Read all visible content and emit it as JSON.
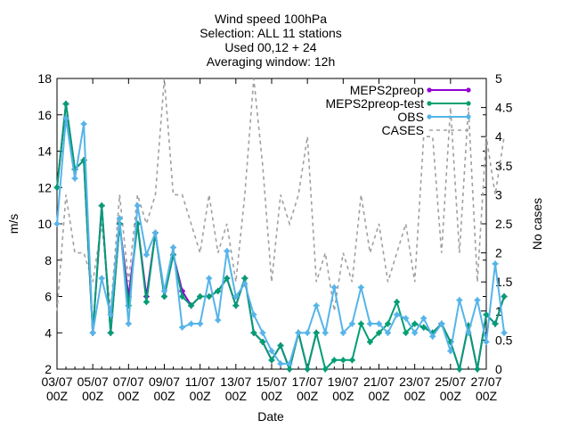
{
  "chart_data": {
    "type": "line",
    "title_lines": [
      "Wind speed 100hPa",
      "Selection: ALL      11 stations",
      "Used 00,12 + 24",
      "Averaging window: 12h"
    ],
    "xlabel": "Date",
    "ylabel": "m/s",
    "y2label": "No cases",
    "ylim": [
      2,
      18
    ],
    "y2lim": [
      0,
      5
    ],
    "yticks": [
      2,
      4,
      6,
      8,
      10,
      12,
      14,
      16,
      18
    ],
    "y2ticks": [
      "0",
      "0.5",
      "1",
      "1.5",
      "2",
      "2.5",
      "3",
      "3.5",
      "4",
      "4.5",
      "5"
    ],
    "xticks": [
      {
        "top": "03/07",
        "bottom": "00Z"
      },
      {
        "top": "05/07",
        "bottom": "00Z"
      },
      {
        "top": "07/07",
        "bottom": "00Z"
      },
      {
        "top": "09/07",
        "bottom": "00Z"
      },
      {
        "top": "11/07",
        "bottom": "00Z"
      },
      {
        "top": "13/07",
        "bottom": "00Z"
      },
      {
        "top": "15/07",
        "bottom": "00Z"
      },
      {
        "top": "17/07",
        "bottom": "00Z"
      },
      {
        "top": "19/07",
        "bottom": "00Z"
      },
      {
        "top": "21/07",
        "bottom": "00Z"
      },
      {
        "top": "23/07",
        "bottom": "00Z"
      },
      {
        "top": "25/07",
        "bottom": "00Z"
      },
      {
        "top": "27/07",
        "bottom": "00Z"
      }
    ],
    "x_step_hours": 12,
    "grid": false,
    "legend_position": "top-right",
    "series": [
      {
        "name": "MEPS2preop",
        "color": "#9400d3",
        "marker": "plus",
        "axis": "y1",
        "values": [
          12.0,
          16.6,
          13.0,
          13.5,
          4.0,
          11.0,
          4.0,
          10.0,
          6.0,
          10.0,
          6.0,
          9.5,
          6.0,
          8.3,
          6.3,
          5.5,
          6.0,
          6.0,
          6.3,
          7.0,
          5.5,
          7.0,
          4.0,
          3.5,
          2.5,
          3.3,
          2.0,
          4.0,
          2.0,
          4.0,
          null,
          null,
          null,
          null,
          null,
          null,
          null,
          null,
          null,
          null,
          null,
          4.3,
          4.0,
          4.5,
          3.5,
          2.0,
          4.4,
          2.0,
          5.0,
          4.5,
          6.0
        ]
      },
      {
        "name": "MEPS2preop-test",
        "color": "#009e73",
        "marker": "plus",
        "axis": "y1",
        "values": [
          12.0,
          16.6,
          13.0,
          13.5,
          4.0,
          11.0,
          4.0,
          10.0,
          5.5,
          10.0,
          5.7,
          9.5,
          6.0,
          8.3,
          6.0,
          5.5,
          6.0,
          6.0,
          6.3,
          7.0,
          5.5,
          7.0,
          4.0,
          3.5,
          2.5,
          3.3,
          2.0,
          4.0,
          2.0,
          4.0,
          2.0,
          2.5,
          2.5,
          2.5,
          4.5,
          3.5,
          4.0,
          4.5,
          5.7,
          4.0,
          4.5,
          4.3,
          4.0,
          4.5,
          3.5,
          2.0,
          4.4,
          2.0,
          5.0,
          4.5,
          6.0
        ]
      },
      {
        "name": "OBS",
        "color": "#56b4e9",
        "marker": "plus",
        "axis": "y1",
        "values": [
          10.0,
          15.8,
          12.5,
          15.5,
          4.0,
          7.0,
          5.0,
          10.3,
          4.5,
          11.0,
          8.3,
          9.5,
          6.3,
          8.7,
          4.3,
          4.5,
          4.5,
          7.0,
          4.7,
          8.5,
          6.0,
          6.7,
          5.0,
          4.0,
          3.0,
          2.3,
          2.3,
          4.0,
          4.0,
          5.5,
          4.0,
          6.5,
          4.0,
          4.5,
          6.5,
          4.5,
          4.5,
          4.0,
          5.0,
          4.8,
          4.0,
          4.8,
          3.8,
          4.5,
          3.0,
          5.8,
          4.0,
          5.8,
          3.5,
          7.8,
          4.0
        ]
      },
      {
        "name": "CASES",
        "color": "#a0a0a0",
        "marker": "none",
        "dashed": true,
        "axis": "y2",
        "values": [
          1.0,
          3.0,
          2.0,
          2.0,
          1.5,
          2.5,
          1.0,
          3.0,
          1.5,
          3.0,
          2.5,
          3.0,
          5.0,
          3.0,
          3.0,
          2.5,
          2.0,
          3.0,
          2.0,
          2.5,
          1.5,
          3.0,
          5.0,
          3.5,
          1.5,
          3.0,
          2.5,
          3.0,
          4.0,
          1.5,
          2.0,
          1.0,
          2.0,
          1.5,
          3.0,
          2.0,
          2.5,
          1.5,
          2.0,
          2.5,
          1.5,
          4.0,
          4.0,
          2.0,
          4.5,
          2.0,
          4.5,
          1.5,
          4.0,
          3.0,
          4.0
        ]
      }
    ]
  }
}
